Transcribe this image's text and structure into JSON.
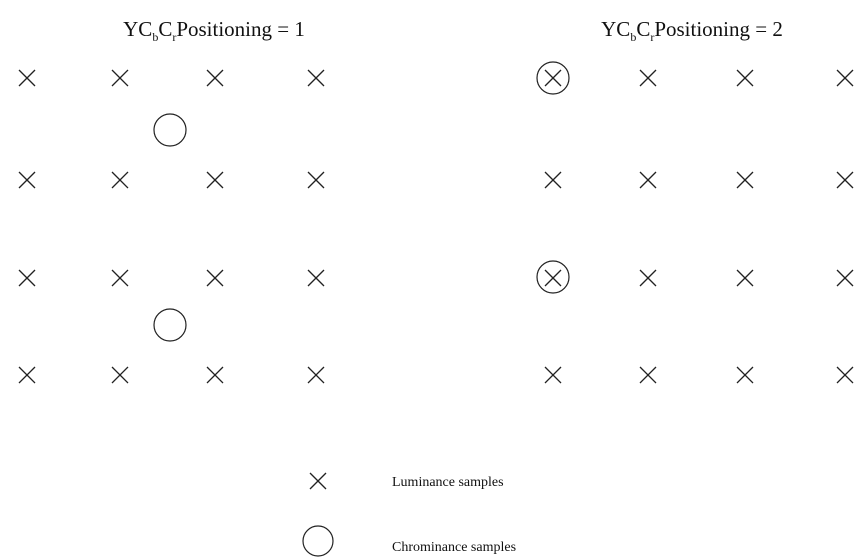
{
  "left_panel": {
    "title": {
      "prefix": "YC",
      "sub_b": "b",
      "mid": "C",
      "sub_r": "r",
      "suffix": "Positioning = 1"
    }
  },
  "right_panel": {
    "title": {
      "prefix": "YC",
      "sub_b": "b",
      "mid": "C",
      "sub_r": "r",
      "suffix": "Positioning = 2"
    }
  },
  "legend": {
    "luminance": "Luminance samples",
    "chrominance": "Chrominance samples"
  }
}
